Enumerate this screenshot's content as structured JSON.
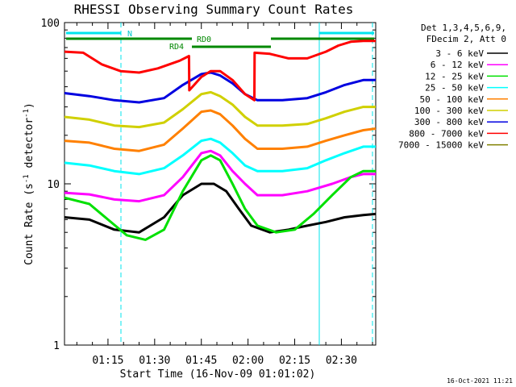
{
  "chart_data": {
    "type": "line",
    "title": "RHESSI Observing Summary Count Rates",
    "xlabel": "Start Time (16-Nov-09 01:01:02)",
    "ylabel_main": "Count Rate (s",
    "ylabel_sup": "-1",
    "ylabel_rest": " detector",
    "ylabel_sup2": "-1",
    "ylabel_end": ")",
    "yscale": "log",
    "ylim": [
      1,
      100
    ],
    "xlim_minutes": [
      0,
      100
    ],
    "y_tick_labels": [
      "1",
      "10",
      "100"
    ],
    "x_tick_labels": [
      "01:15",
      "01:30",
      "01:45",
      "02:00",
      "02:15",
      "02:30"
    ],
    "x_tick_minutes": [
      13.97,
      28.97,
      43.97,
      58.97,
      73.97,
      88.97
    ],
    "legend_header": [
      "Det 1,3,4,5,6,9,",
      "FDecim 2, Att 0"
    ],
    "timestamp": "16-Oct-2021 11:21",
    "series": [
      {
        "name": "3 - 6 keV",
        "color": "#000000",
        "points": [
          [
            0,
            6.2
          ],
          [
            8,
            6
          ],
          [
            16,
            5.2
          ],
          [
            24,
            5
          ],
          [
            32,
            6.2
          ],
          [
            38,
            8.5
          ],
          [
            44,
            10
          ],
          [
            48,
            10
          ],
          [
            52,
            9
          ],
          [
            56,
            7
          ],
          [
            60,
            5.5
          ],
          [
            66,
            5
          ],
          [
            72,
            5.2
          ],
          [
            78,
            5.5
          ],
          [
            84,
            5.8
          ],
          [
            90,
            6.2
          ],
          [
            96,
            6.4
          ],
          [
            100,
            6.5
          ]
        ]
      },
      {
        "name": "6 - 12 keV",
        "color": "#ff00ff",
        "points": [
          [
            0,
            8.8
          ],
          [
            8,
            8.6
          ],
          [
            16,
            8
          ],
          [
            24,
            7.8
          ],
          [
            32,
            8.5
          ],
          [
            38,
            11
          ],
          [
            44,
            15.5
          ],
          [
            47,
            16
          ],
          [
            50,
            15
          ],
          [
            54,
            12
          ],
          [
            58,
            10
          ],
          [
            62,
            8.5
          ],
          [
            70,
            8.5
          ],
          [
            78,
            9
          ],
          [
            86,
            10
          ],
          [
            92,
            11
          ],
          [
            96,
            11.5
          ],
          [
            100,
            11.5
          ]
        ]
      },
      {
        "name": "12 - 25 keV",
        "color": "#00e000",
        "points": [
          [
            0,
            8.2
          ],
          [
            8,
            7.5
          ],
          [
            14,
            6
          ],
          [
            20,
            4.8
          ],
          [
            26,
            4.5
          ],
          [
            32,
            5.2
          ],
          [
            38,
            9
          ],
          [
            44,
            14
          ],
          [
            47,
            15
          ],
          [
            50,
            14
          ],
          [
            54,
            10
          ],
          [
            58,
            7
          ],
          [
            62,
            5.5
          ],
          [
            68,
            5
          ],
          [
            74,
            5.2
          ],
          [
            80,
            6.5
          ],
          [
            86,
            8.5
          ],
          [
            92,
            11
          ],
          [
            96,
            12
          ],
          [
            100,
            12
          ]
        ]
      },
      {
        "name": "25 - 50 keV",
        "color": "#00ffff",
        "points": [
          [
            0,
            13.5
          ],
          [
            8,
            13
          ],
          [
            16,
            12
          ],
          [
            24,
            11.5
          ],
          [
            32,
            12.5
          ],
          [
            38,
            15
          ],
          [
            44,
            18.5
          ],
          [
            47,
            19
          ],
          [
            50,
            18
          ],
          [
            54,
            15.5
          ],
          [
            58,
            13
          ],
          [
            62,
            12
          ],
          [
            70,
            12
          ],
          [
            78,
            12.5
          ],
          [
            84,
            14
          ],
          [
            90,
            15.5
          ],
          [
            96,
            17
          ],
          [
            100,
            17
          ]
        ]
      },
      {
        "name": "50 - 100 keV",
        "color": "#ff8000",
        "points": [
          [
            0,
            18.5
          ],
          [
            8,
            18
          ],
          [
            16,
            16.5
          ],
          [
            24,
            16
          ],
          [
            32,
            17.5
          ],
          [
            38,
            22
          ],
          [
            44,
            28
          ],
          [
            47,
            28.5
          ],
          [
            50,
            27
          ],
          [
            54,
            23
          ],
          [
            58,
            19
          ],
          [
            62,
            16.5
          ],
          [
            70,
            16.5
          ],
          [
            78,
            17
          ],
          [
            84,
            18.5
          ],
          [
            90,
            20
          ],
          [
            96,
            21.5
          ],
          [
            100,
            22
          ]
        ]
      },
      {
        "name": "100 - 300 keV",
        "color": "#d0d000",
        "points": [
          [
            0,
            26
          ],
          [
            8,
            25
          ],
          [
            16,
            23
          ],
          [
            24,
            22.5
          ],
          [
            32,
            24
          ],
          [
            38,
            29
          ],
          [
            44,
            36
          ],
          [
            47,
            37
          ],
          [
            50,
            35
          ],
          [
            54,
            31
          ],
          [
            58,
            26
          ],
          [
            62,
            23
          ],
          [
            70,
            23
          ],
          [
            78,
            23.5
          ],
          [
            84,
            25.5
          ],
          [
            90,
            28
          ],
          [
            96,
            30
          ],
          [
            100,
            30
          ]
        ]
      },
      {
        "name": "300 - 800 keV",
        "color": "#0000e0",
        "points": [
          [
            0,
            36.5
          ],
          [
            8,
            35
          ],
          [
            16,
            33
          ],
          [
            24,
            32
          ],
          [
            32,
            34
          ],
          [
            38,
            41
          ],
          [
            44,
            48
          ],
          [
            47,
            49
          ],
          [
            50,
            47
          ],
          [
            54,
            42
          ],
          [
            58,
            36
          ],
          [
            62,
            33
          ],
          [
            70,
            33
          ],
          [
            78,
            34
          ],
          [
            84,
            37
          ],
          [
            90,
            41
          ],
          [
            96,
            44
          ],
          [
            100,
            44
          ]
        ]
      },
      {
        "name": "800 - 7000 keV",
        "color": "#ff0000",
        "points": [
          [
            0,
            66
          ],
          [
            6,
            65
          ],
          [
            12,
            55
          ],
          [
            18,
            50
          ],
          [
            24,
            49
          ],
          [
            30,
            52
          ],
          [
            37,
            58
          ],
          [
            40,
            62
          ],
          [
            40.1,
            38
          ],
          [
            44,
            46
          ],
          [
            47,
            50
          ],
          [
            50,
            50
          ],
          [
            54,
            44
          ],
          [
            58,
            36
          ],
          [
            61,
            33
          ],
          [
            61.1,
            65
          ],
          [
            66,
            64
          ],
          [
            72,
            60
          ],
          [
            78,
            60
          ],
          [
            84,
            66
          ],
          [
            88,
            72
          ],
          [
            92,
            76
          ],
          [
            96,
            77
          ],
          [
            100,
            77
          ]
        ]
      },
      {
        "name": "7000 - 15000 keV",
        "color": "#808000",
        "points": []
      }
    ],
    "overlay_labels": [
      "N",
      "RD4",
      "RD0"
    ]
  }
}
